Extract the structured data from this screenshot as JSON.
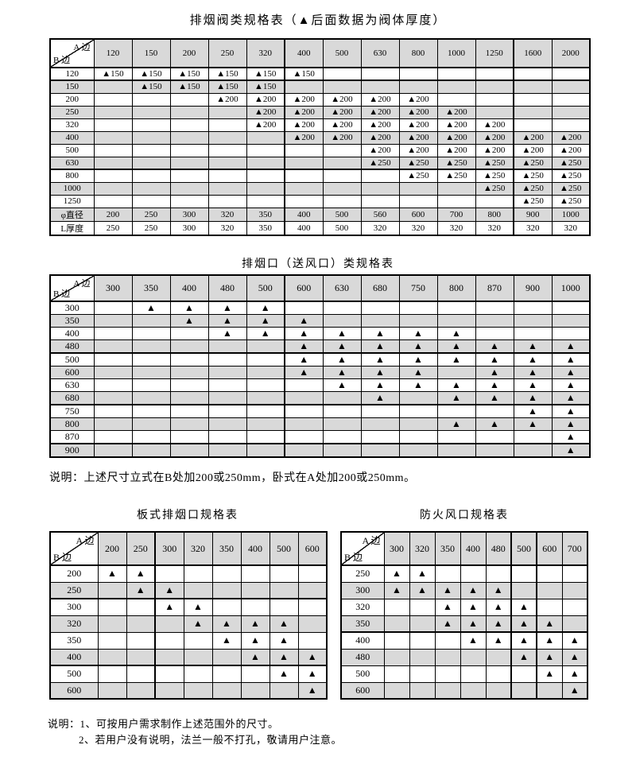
{
  "document": {
    "marker": "▲",
    "shade_color": "#d9d9d9",
    "tables": [
      {
        "title": "排烟阀类规格表（▲后面数据为阀体厚度）",
        "corner_top": "A 边",
        "corner_bottom": "B 边",
        "columns": [
          "120",
          "150",
          "200",
          "250",
          "320",
          "400",
          "500",
          "630",
          "800",
          "1000",
          "1250",
          "1600",
          "2000"
        ],
        "rows": [
          {
            "label": "120",
            "cells": [
              "▲150",
              "▲150",
              "▲150",
              "▲150",
              "▲150",
              "▲150",
              "",
              "",
              "",
              "",
              "",
              "",
              ""
            ]
          },
          {
            "label": "150",
            "cells": [
              "",
              "▲150",
              "▲150",
              "▲150",
              "▲150",
              "",
              "",
              "",
              "",
              "",
              "",
              "",
              ""
            ]
          },
          {
            "label": "200",
            "cells": [
              "",
              "",
              "",
              "▲200",
              "▲200",
              "▲200",
              "▲200",
              "▲200",
              "▲200",
              "",
              "",
              "",
              ""
            ]
          },
          {
            "label": "250",
            "cells": [
              "",
              "",
              "",
              "",
              "▲200",
              "▲200",
              "▲200",
              "▲200",
              "▲200",
              "▲200",
              "",
              "",
              ""
            ]
          },
          {
            "label": "320",
            "cells": [
              "",
              "",
              "",
              "",
              "▲200",
              "▲200",
              "▲200",
              "▲200",
              "▲200",
              "▲200",
              "▲200",
              "",
              ""
            ]
          },
          {
            "label": "400",
            "cells": [
              "",
              "",
              "",
              "",
              "",
              "▲200",
              "▲200",
              "▲200",
              "▲200",
              "▲200",
              "▲200",
              "▲200",
              "▲200"
            ]
          },
          {
            "label": "500",
            "cells": [
              "",
              "",
              "",
              "",
              "",
              "",
              "",
              "▲200",
              "▲200",
              "▲200",
              "▲200",
              "▲200",
              "▲200"
            ]
          },
          {
            "label": "630",
            "cells": [
              "",
              "",
              "",
              "",
              "",
              "",
              "",
              "▲250",
              "▲250",
              "▲250",
              "▲250",
              "▲250",
              "▲250"
            ]
          },
          {
            "label": "800",
            "cells": [
              "",
              "",
              "",
              "",
              "",
              "",
              "",
              "",
              "▲250",
              "▲250",
              "▲250",
              "▲250",
              "▲250"
            ]
          },
          {
            "label": "1000",
            "cells": [
              "",
              "",
              "",
              "",
              "",
              "",
              "",
              "",
              "",
              "",
              "▲250",
              "▲250",
              "▲250"
            ]
          },
          {
            "label": "1250",
            "cells": [
              "",
              "",
              "",
              "",
              "",
              "",
              "",
              "",
              "",
              "",
              "",
              "▲250",
              "▲250"
            ]
          },
          {
            "label": "φ直径",
            "cells": [
              "200",
              "250",
              "300",
              "320",
              "350",
              "400",
              "500",
              "560",
              "600",
              "700",
              "800",
              "900",
              "1000"
            ]
          },
          {
            "label": "L厚度",
            "cells": [
              "250",
              "250",
              "300",
              "320",
              "350",
              "400",
              "500",
              "320",
              "320",
              "320",
              "320",
              "320",
              "320"
            ]
          }
        ]
      },
      {
        "title": "排烟口（送风口）类规格表",
        "corner_top": "A 边",
        "corner_bottom": "B 边",
        "note": "说明：上述尺寸立式在B处加200或250mm，卧式在A处加200或250mm。",
        "columns": [
          "300",
          "350",
          "400",
          "480",
          "500",
          "600",
          "630",
          "680",
          "750",
          "800",
          "870",
          "900",
          "1000"
        ],
        "rows": [
          {
            "label": "300",
            "cells": [
              "",
              "▲",
              "▲",
              "▲",
              "▲",
              "",
              "",
              "",
              "",
              "",
              "",
              "",
              ""
            ]
          },
          {
            "label": "350",
            "cells": [
              "",
              "",
              "▲",
              "▲",
              "▲",
              "▲",
              "",
              "",
              "",
              "",
              "",
              "",
              ""
            ]
          },
          {
            "label": "400",
            "cells": [
              "",
              "",
              "",
              "▲",
              "▲",
              "▲",
              "▲",
              "▲",
              "▲",
              "▲",
              "",
              "",
              ""
            ]
          },
          {
            "label": "480",
            "cells": [
              "",
              "",
              "",
              "",
              "",
              "▲",
              "▲",
              "▲",
              "▲",
              "▲",
              "▲",
              "▲",
              "▲"
            ]
          },
          {
            "label": "500",
            "cells": [
              "",
              "",
              "",
              "",
              "",
              "▲",
              "▲",
              "▲",
              "▲",
              "▲",
              "▲",
              "▲",
              "▲"
            ]
          },
          {
            "label": "600",
            "cells": [
              "",
              "",
              "",
              "",
              "",
              "▲",
              "▲",
              "▲",
              "▲",
              "",
              "▲",
              "▲",
              "▲"
            ]
          },
          {
            "label": "630",
            "cells": [
              "",
              "",
              "",
              "",
              "",
              "",
              "▲",
              "▲",
              "▲",
              "▲",
              "▲",
              "▲",
              "▲"
            ]
          },
          {
            "label": "680",
            "cells": [
              "",
              "",
              "",
              "",
              "",
              "",
              "",
              "▲",
              "",
              "▲",
              "▲",
              "▲",
              "▲"
            ]
          },
          {
            "label": "750",
            "cells": [
              "",
              "",
              "",
              "",
              "",
              "",
              "",
              "",
              "",
              "",
              "",
              "▲",
              "▲"
            ]
          },
          {
            "label": "800",
            "cells": [
              "",
              "",
              "",
              "",
              "",
              "",
              "",
              "",
              "",
              "▲",
              "▲",
              "▲",
              "▲"
            ]
          },
          {
            "label": "870",
            "cells": [
              "",
              "",
              "",
              "",
              "",
              "",
              "",
              "",
              "",
              "",
              "",
              "",
              "▲"
            ]
          },
          {
            "label": "900",
            "cells": [
              "",
              "",
              "",
              "",
              "",
              "",
              "",
              "",
              "",
              "",
              "",
              "",
              "▲"
            ]
          }
        ]
      },
      {
        "title": "板式排烟口规格表",
        "corner_top": "A 边",
        "corner_bottom": "B 边",
        "columns": [
          "200",
          "250",
          "300",
          "320",
          "350",
          "400",
          "500",
          "600"
        ],
        "rows": [
          {
            "label": "200",
            "cells": [
              "▲",
              "▲",
              "",
              "",
              "",
              "",
              "",
              ""
            ]
          },
          {
            "label": "250",
            "cells": [
              "",
              "▲",
              "▲",
              "",
              "",
              "",
              "",
              ""
            ]
          },
          {
            "label": "300",
            "cells": [
              "",
              "",
              "▲",
              "▲",
              "",
              "",
              "",
              ""
            ]
          },
          {
            "label": "320",
            "cells": [
              "",
              "",
              "",
              "▲",
              "▲",
              "▲",
              "▲",
              ""
            ]
          },
          {
            "label": "350",
            "cells": [
              "",
              "",
              "",
              "",
              "▲",
              "▲",
              "▲",
              ""
            ]
          },
          {
            "label": "400",
            "cells": [
              "",
              "",
              "",
              "",
              "",
              "▲",
              "▲",
              "▲"
            ]
          },
          {
            "label": "500",
            "cells": [
              "",
              "",
              "",
              "",
              "",
              "",
              "▲",
              "▲"
            ]
          },
          {
            "label": "600",
            "cells": [
              "",
              "",
              "",
              "",
              "",
              "",
              "",
              "▲"
            ]
          }
        ]
      },
      {
        "title": "防火风口规格表",
        "corner_top": "A 边",
        "corner_bottom": "B 边",
        "columns": [
          "300",
          "320",
          "350",
          "400",
          "480",
          "500",
          "600",
          "700"
        ],
        "rows": [
          {
            "label": "250",
            "cells": [
              "▲",
              "▲",
              "",
              "",
              "",
              "",
              "",
              ""
            ]
          },
          {
            "label": "300",
            "cells": [
              "▲",
              "▲",
              "▲",
              "▲",
              "▲",
              "",
              "",
              ""
            ]
          },
          {
            "label": "320",
            "cells": [
              "",
              "",
              "▲",
              "▲",
              "▲",
              "▲",
              "",
              ""
            ]
          },
          {
            "label": "350",
            "cells": [
              "",
              "",
              "▲",
              "▲",
              "▲",
              "▲",
              "▲",
              ""
            ]
          },
          {
            "label": "400",
            "cells": [
              "",
              "",
              "",
              "▲",
              "▲",
              "▲",
              "▲",
              "▲"
            ]
          },
          {
            "label": "480",
            "cells": [
              "",
              "",
              "",
              "",
              "",
              "▲",
              "▲",
              "▲"
            ]
          },
          {
            "label": "500",
            "cells": [
              "",
              "",
              "",
              "",
              "",
              "",
              "▲",
              "▲"
            ]
          },
          {
            "label": "600",
            "cells": [
              "",
              "",
              "",
              "",
              "",
              "",
              "",
              "▲"
            ]
          }
        ]
      }
    ],
    "footnotes": [
      "说明：1、可按用户需求制作上述范围外的尺寸。",
      "2、若用户没有说明，法兰一般不打孔，敬请用户注意。"
    ]
  }
}
